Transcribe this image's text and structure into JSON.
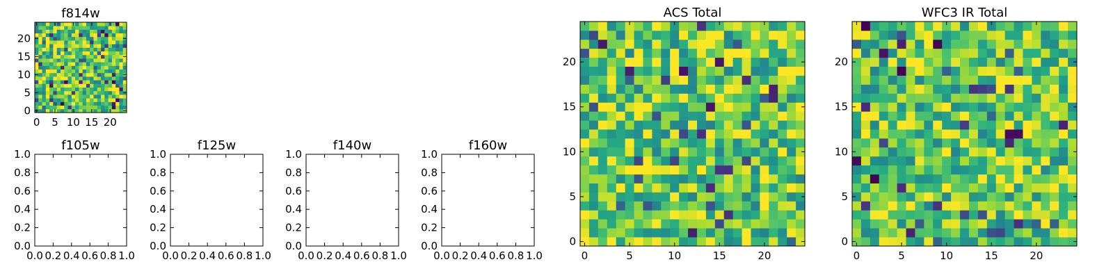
{
  "chart_data": [
    {
      "type": "heatmap",
      "title": "f814w",
      "xticks": [
        "0",
        "5",
        "10",
        "15",
        "20"
      ],
      "yticks": [
        "0",
        "5",
        "10",
        "15",
        "20"
      ],
      "xlim": [
        -0.5,
        24.5
      ],
      "ylim": [
        -0.5,
        24.5
      ],
      "grid_size": [
        25,
        25
      ],
      "colormap": "viridis",
      "seed": 814
    },
    {
      "type": "empty",
      "title": "f105w",
      "xticks": [
        "0.0",
        "0.2",
        "0.4",
        "0.6",
        "0.8",
        "1.0"
      ],
      "yticks": [
        "0.0",
        "0.2",
        "0.4",
        "0.6",
        "0.8",
        "1.0"
      ],
      "xlim": [
        0,
        1
      ],
      "ylim": [
        0,
        1
      ]
    },
    {
      "type": "empty",
      "title": "f125w",
      "xticks": [
        "0.0",
        "0.2",
        "0.4",
        "0.6",
        "0.8",
        "1.0"
      ],
      "yticks": [
        "0.0",
        "0.2",
        "0.4",
        "0.6",
        "0.8",
        "1.0"
      ],
      "xlim": [
        0,
        1
      ],
      "ylim": [
        0,
        1
      ]
    },
    {
      "type": "empty",
      "title": "f140w",
      "xticks": [
        "0.0",
        "0.2",
        "0.4",
        "0.6",
        "0.8",
        "1.0"
      ],
      "yticks": [
        "0.0",
        "0.2",
        "0.4",
        "0.6",
        "0.8",
        "1.0"
      ],
      "xlim": [
        0,
        1
      ],
      "ylim": [
        0,
        1
      ]
    },
    {
      "type": "empty",
      "title": "f160w",
      "xticks": [
        "0.0",
        "0.2",
        "0.4",
        "0.6",
        "0.8",
        "1.0"
      ],
      "yticks": [
        "0.0",
        "0.2",
        "0.4",
        "0.6",
        "0.8",
        "1.0"
      ],
      "xlim": [
        0,
        1
      ],
      "ylim": [
        0,
        1
      ]
    },
    {
      "type": "heatmap",
      "title": "ACS Total",
      "xticks": [
        "0",
        "5",
        "10",
        "15",
        "20"
      ],
      "yticks": [
        "0",
        "5",
        "10",
        "15",
        "20"
      ],
      "xlim": [
        -0.5,
        24.5
      ],
      "ylim": [
        -0.5,
        24.5
      ],
      "grid_size": [
        25,
        25
      ],
      "colormap": "viridis",
      "seed": 2718
    },
    {
      "type": "heatmap",
      "title": "WFC3 IR Total",
      "xticks": [
        "0",
        "5",
        "10",
        "15",
        "20"
      ],
      "yticks": [
        "0",
        "5",
        "10",
        "15",
        "20"
      ],
      "xlim": [
        -0.5,
        24.5
      ],
      "ylim": [
        -0.5,
        24.5
      ],
      "grid_size": [
        25,
        25
      ],
      "colormap": "viridis",
      "seed": 3141
    }
  ]
}
